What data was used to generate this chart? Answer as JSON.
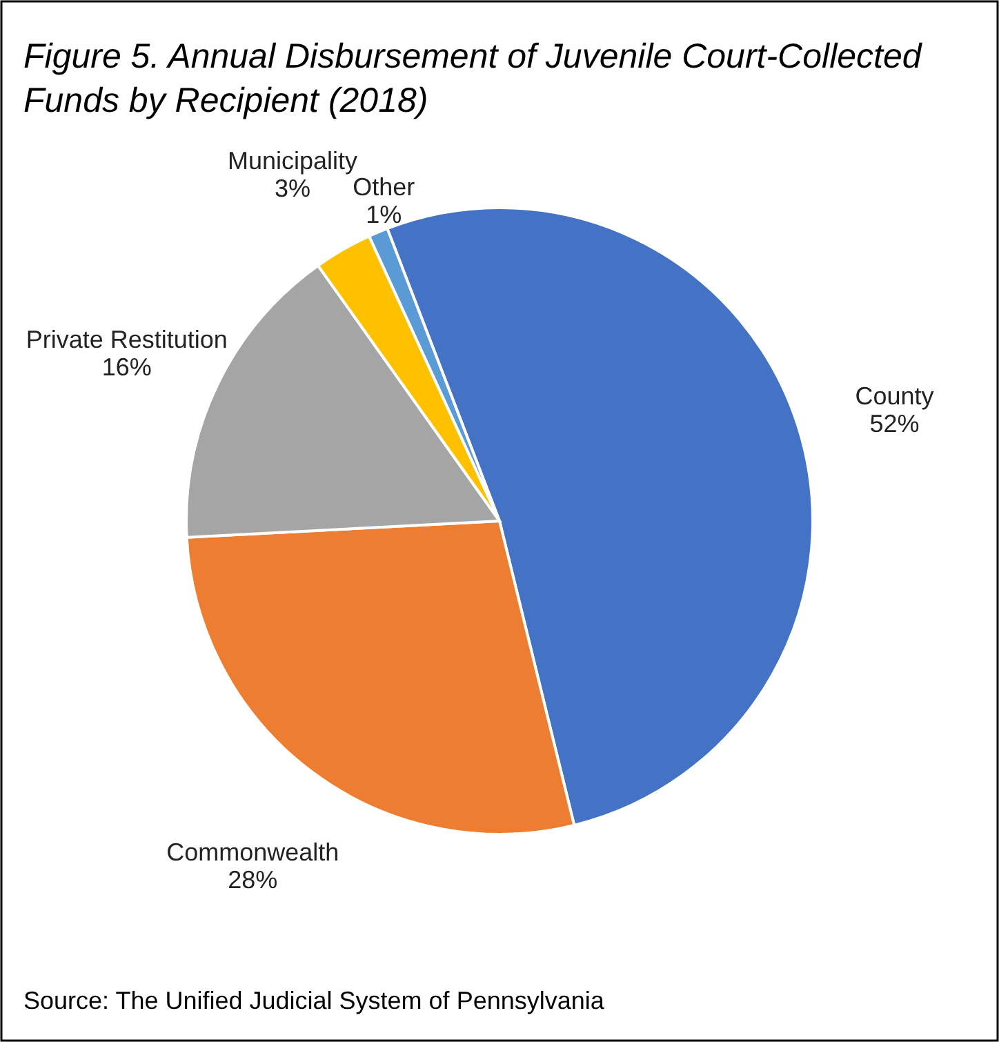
{
  "chart_data": {
    "type": "pie",
    "title": "Figure 5. Annual Disbursement of Juvenile Court-Collected Funds by Recipient (2018)",
    "categories": [
      "County",
      "Commonwealth",
      "Private Restitution",
      "Municipality",
      "Other"
    ],
    "values": [
      52,
      28,
      16,
      3,
      1
    ],
    "colors": [
      "#4472c4",
      "#ed7d31",
      "#a5a5a5",
      "#ffc000",
      "#5b9bd5"
    ],
    "value_labels": [
      "52%",
      "28%",
      "16%",
      "3%",
      "1%"
    ],
    "annotations": [
      "Source: The Unified Judicial System of Pennsylvania"
    ]
  }
}
